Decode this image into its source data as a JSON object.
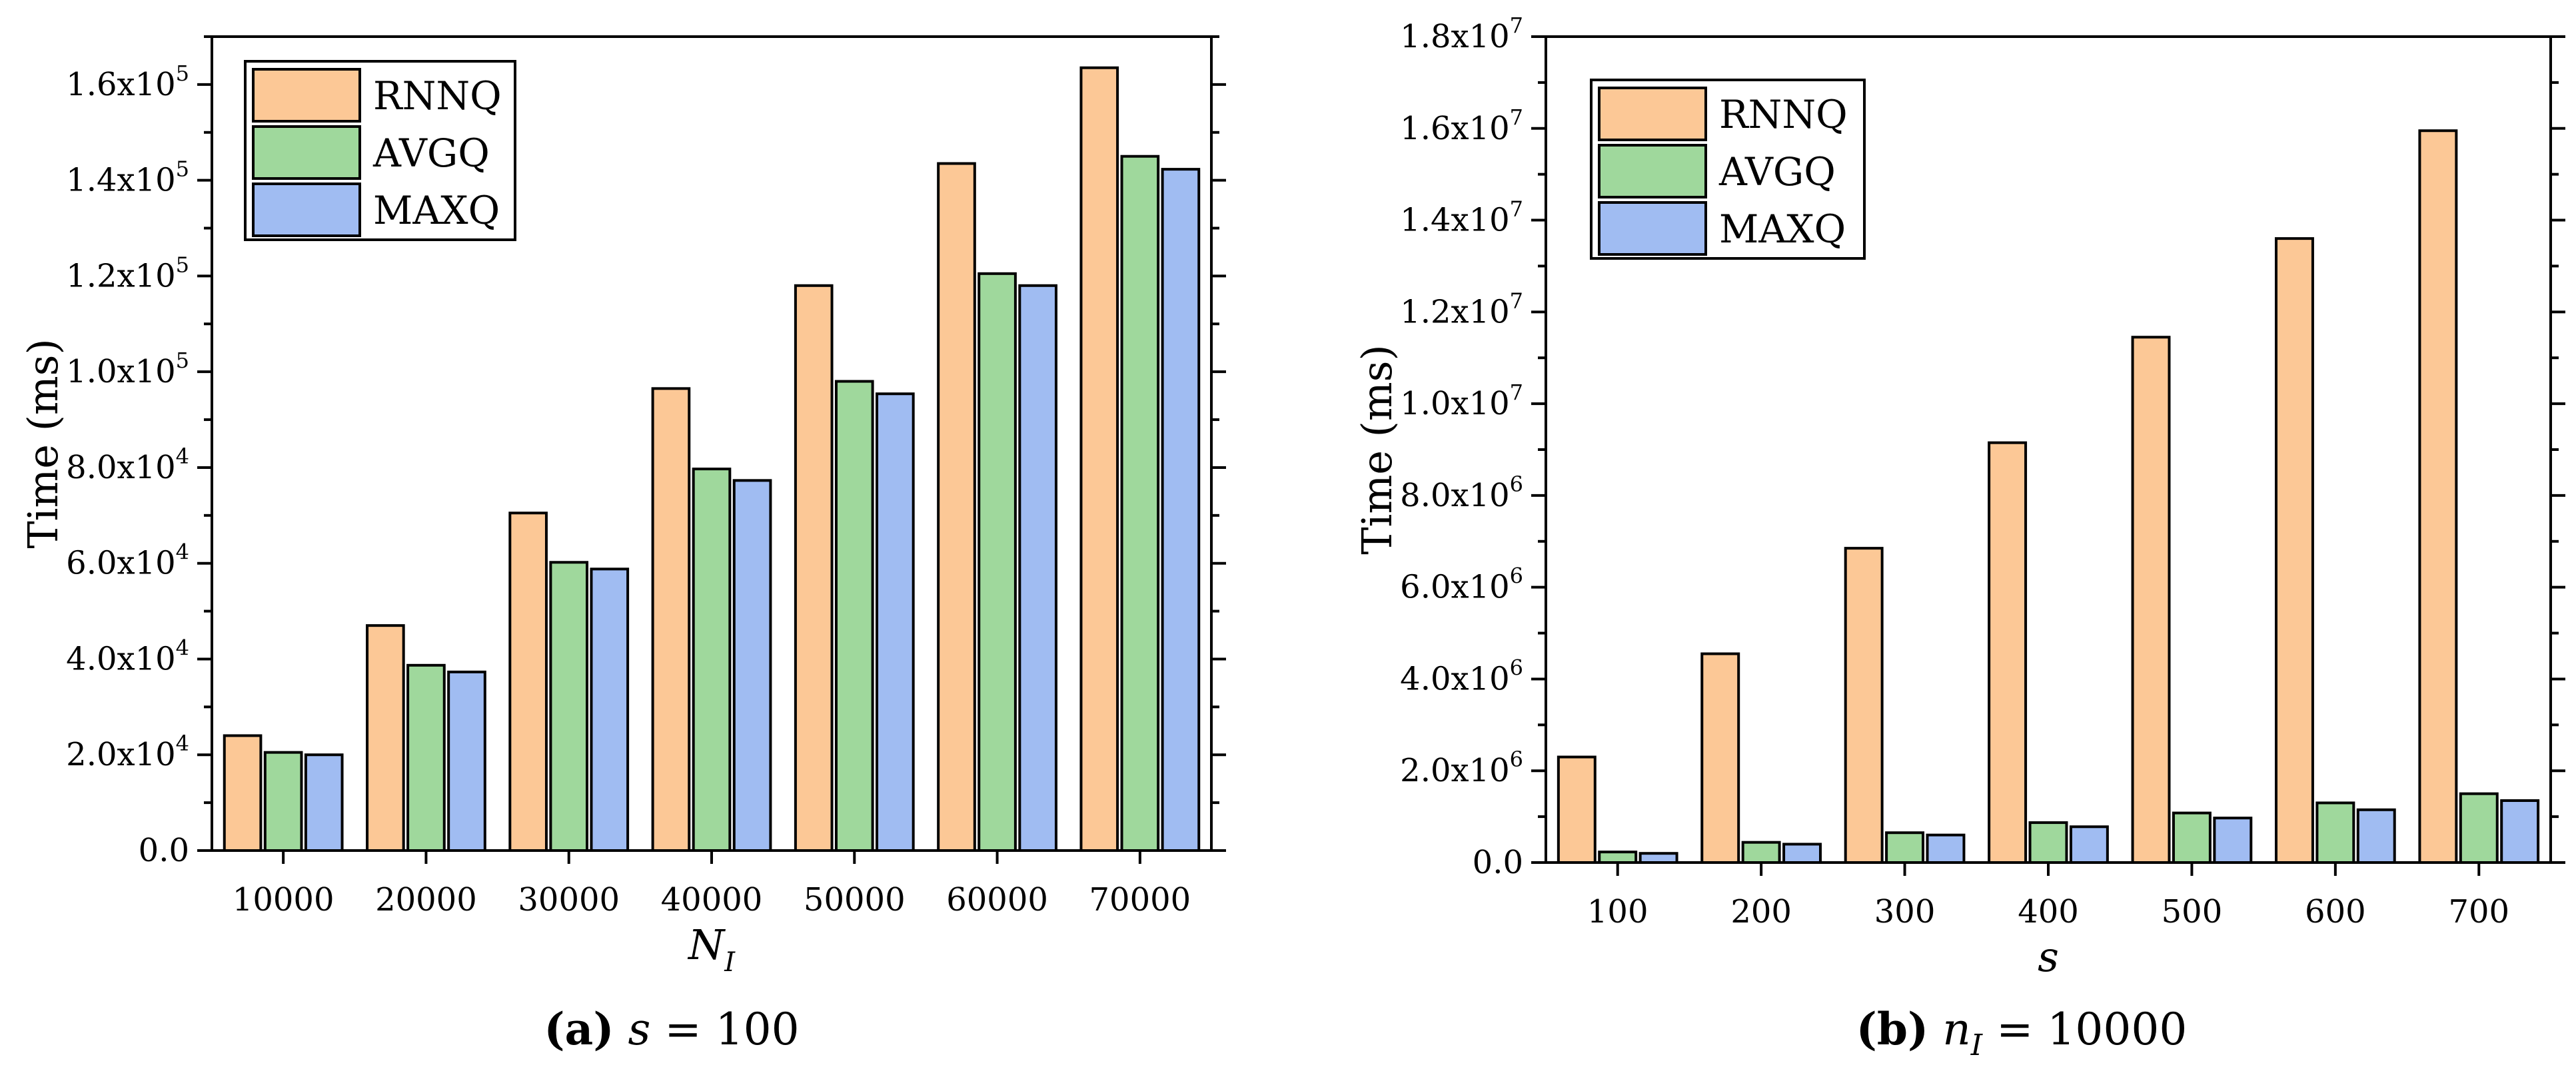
{
  "chart_data": [
    {
      "type": "bar",
      "panel_label": "(a)",
      "caption": "s = 100",
      "categories": [
        "10000",
        "20000",
        "30000",
        "40000",
        "50000",
        "60000",
        "70000"
      ],
      "series": [
        {
          "name": "RNNQ",
          "values": [
            24000,
            47000,
            70500,
            96500,
            118000,
            143500,
            163500
          ]
        },
        {
          "name": "AVGQ",
          "values": [
            20500,
            38700,
            60200,
            79700,
            98000,
            120500,
            145000
          ]
        },
        {
          "name": "MAXQ",
          "values": [
            20000,
            37300,
            58800,
            77300,
            95400,
            118000,
            142300
          ]
        }
      ],
      "xlabel": "N_I",
      "ylabel": "Time (ms)",
      "ylim": [
        0,
        170000
      ],
      "yticks": [
        {
          "value": 0,
          "label": "0.0"
        },
        {
          "value": 20000,
          "label": "2.0x10^4"
        },
        {
          "value": 40000,
          "label": "4.0x10^4"
        },
        {
          "value": 60000,
          "label": "6.0x10^4"
        },
        {
          "value": 80000,
          "label": "8.0x10^4"
        },
        {
          "value": 100000,
          "label": "1.0x10^5"
        },
        {
          "value": 120000,
          "label": "1.2x10^5"
        },
        {
          "value": 140000,
          "label": "1.4x10^5"
        },
        {
          "value": 160000,
          "label": "1.6x10^5"
        }
      ],
      "legend_position": "top-left"
    },
    {
      "type": "bar",
      "panel_label": "(b)",
      "caption": "n_I = 10000",
      "categories": [
        "100",
        "200",
        "300",
        "400",
        "500",
        "600",
        "700"
      ],
      "series": [
        {
          "name": "RNNQ",
          "values": [
            2300000,
            4550000,
            6850000,
            9150000,
            11450000,
            13600000,
            15950000
          ]
        },
        {
          "name": "AVGQ",
          "values": [
            230000,
            440000,
            650000,
            870000,
            1080000,
            1300000,
            1500000
          ]
        },
        {
          "name": "MAXQ",
          "values": [
            200000,
            400000,
            600000,
            780000,
            970000,
            1150000,
            1350000
          ]
        }
      ],
      "xlabel": "s",
      "ylabel": "Time (ms)",
      "ylim": [
        0,
        18000000
      ],
      "yticks": [
        {
          "value": 0,
          "label": "0.0"
        },
        {
          "value": 2000000,
          "label": "2.0x10^6"
        },
        {
          "value": 4000000,
          "label": "4.0x10^6"
        },
        {
          "value": 6000000,
          "label": "6.0x10^6"
        },
        {
          "value": 8000000,
          "label": "8.0x10^6"
        },
        {
          "value": 10000000,
          "label": "1.0x10^7"
        },
        {
          "value": 12000000,
          "label": "1.2x10^7"
        },
        {
          "value": 14000000,
          "label": "1.4x10^7"
        },
        {
          "value": 16000000,
          "label": "1.6x10^7"
        },
        {
          "value": 18000000,
          "label": "1.8x10^7"
        }
      ],
      "legend_position": "top-left"
    }
  ],
  "colors": {
    "RNNQ": "#fcc896",
    "AVGQ": "#9fd89c",
    "MAXQ": "#a0bcf2"
  }
}
